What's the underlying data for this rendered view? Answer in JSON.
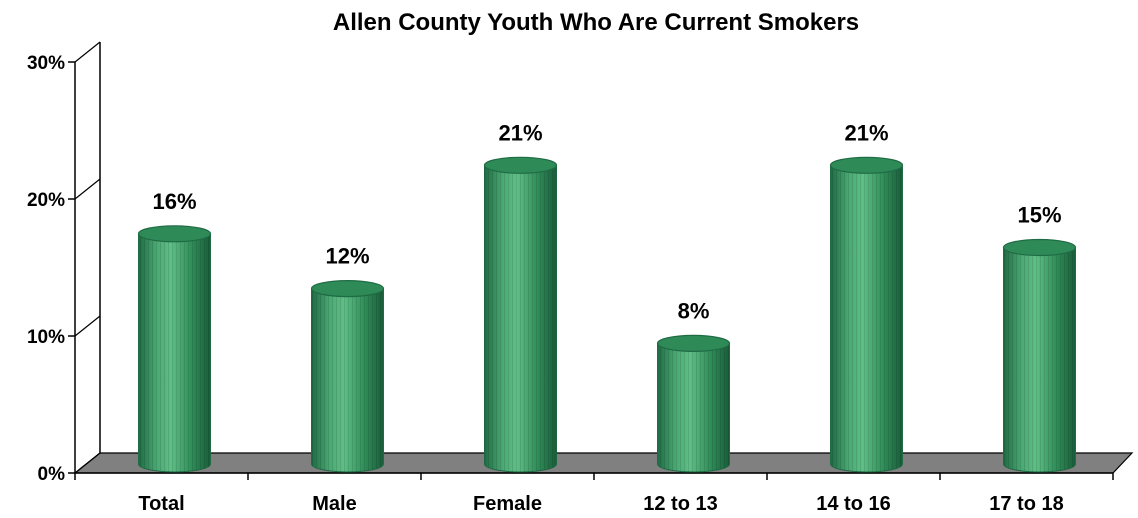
{
  "chart_data": {
    "type": "bar",
    "title": "Allen County Youth Who Are Current Smokers",
    "xlabel": "",
    "ylabel": "",
    "categories": [
      "Total",
      "Male",
      "Female",
      "12 to 13",
      "14 to 16",
      "17 to 18"
    ],
    "values": [
      16,
      12,
      21,
      8,
      21,
      15
    ],
    "data_labels": [
      "16%",
      "12%",
      "21%",
      "8%",
      "21%",
      "15%"
    ],
    "ylim": [
      0,
      30
    ],
    "yticks": [
      0,
      10,
      20,
      30
    ],
    "ytick_labels": [
      "0%",
      "10%",
      "20%",
      "30%"
    ],
    "grid": false,
    "legend": "none",
    "bar_style": "3d-cylinder"
  },
  "colors": {
    "bar_fill": "#2e8b57",
    "bar_dark": "#1f6b44",
    "bar_light": "#5fbf86",
    "floor": "#808080",
    "axis": "#000000",
    "text": "#000000"
  }
}
